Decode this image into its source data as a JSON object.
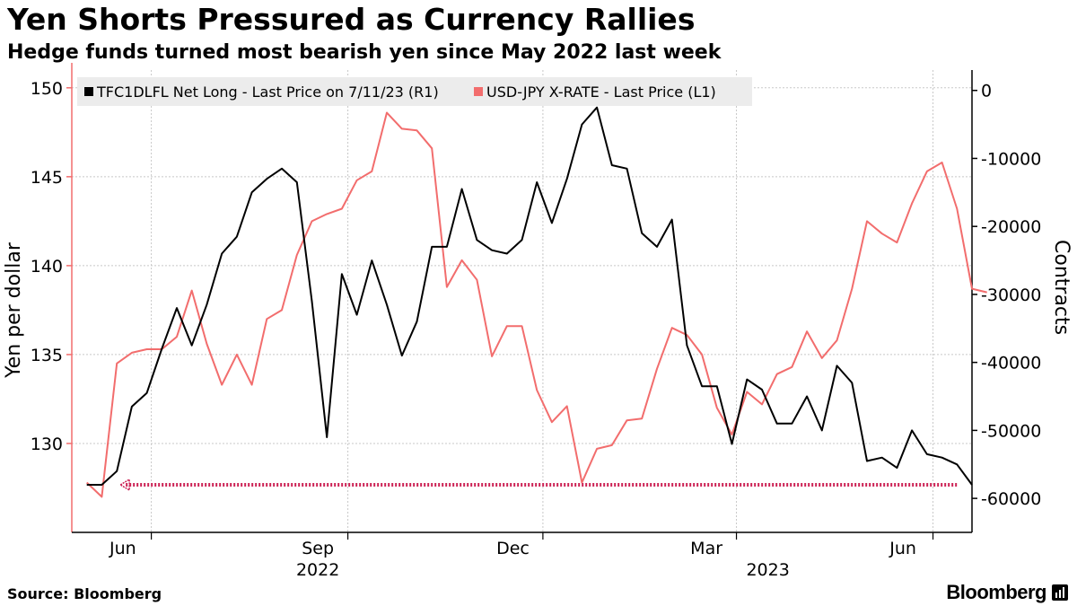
{
  "header": {
    "title": "Yen Shorts Pressured as Currency Rallies",
    "subtitle": "Hedge funds turned most bearish yen since May 2022 last week"
  },
  "footer": {
    "source": "Source: Bloomberg",
    "brand": "Bloomberg"
  },
  "chart_data": {
    "type": "line",
    "title": "Yen Shorts Pressured as Currency Rallies",
    "subtitle": "Hedge funds turned most bearish yen since May 2022 last week",
    "ylabel_left": "Yen per dollar",
    "ylabel_right": "Contracts",
    "ylim_left": [
      125,
      151
    ],
    "ylim_right": [
      -65000,
      3000
    ],
    "left_ticks": [
      130,
      135,
      140,
      145,
      150
    ],
    "right_ticks": [
      0,
      -10000,
      -20000,
      -30000,
      -40000,
      -50000,
      -60000
    ],
    "right_tick_labels": [
      "0",
      "-10000",
      "-20000",
      "-30000",
      "-40000",
      "-50000",
      "-60000"
    ],
    "x_ticks": [
      {
        "label": "Jun",
        "week": 2.4
      },
      {
        "label": "Sep",
        "week": 15.4
      },
      {
        "label": "Dec",
        "week": 28.4
      },
      {
        "label": "Mar",
        "week": 41.3
      },
      {
        "label": "Jun",
        "week": 54.4
      }
    ],
    "x_major_ticks": [
      4.3,
      17.4,
      30.4,
      43.3,
      56.4
    ],
    "year_labels": [
      {
        "label": "2022",
        "week": 15.4
      },
      {
        "label": "2023",
        "week": 45.4
      }
    ],
    "x_range": [
      -1,
      59
    ],
    "grid": true,
    "legend_placement": "top-left",
    "series": [
      {
        "name": "TFC1DLFL Net Long - Last Price on 7/11/23 (R1)",
        "axis": "right",
        "color": "#000000",
        "values": [
          -58000,
          -58000,
          -56000,
          -46500,
          -44500,
          -38000,
          -32000,
          -37500,
          -31500,
          -24000,
          -21500,
          -15000,
          -13000,
          -11500,
          -13500,
          -31000,
          -51000,
          -27000,
          -33000,
          -25000,
          -31500,
          -39000,
          -34000,
          -23000,
          -23000,
          -14500,
          -22000,
          -23500,
          -24000,
          -22000,
          -13500,
          -19500,
          -13000,
          -5000,
          -2500,
          -11000,
          -11500,
          -21000,
          -23000,
          -19000,
          -37500,
          -43500,
          -43500,
          -52000,
          -42500,
          -44000,
          -49000,
          -49000,
          -45000,
          -50000,
          -40500,
          -43000,
          -54500,
          -54000,
          -55500,
          -50000,
          -53500,
          -54000,
          -55000,
          -58000
        ]
      },
      {
        "name": "USD-JPY X-RATE - Last Price (L1)",
        "axis": "left",
        "color": "#f26d6d",
        "values": [
          127.8,
          127.0,
          134.5,
          135.1,
          135.3,
          135.3,
          136.0,
          138.6,
          135.6,
          133.3,
          135.0,
          133.3,
          137.0,
          137.5,
          140.6,
          142.5,
          142.9,
          143.2,
          144.8,
          145.3,
          148.6,
          147.7,
          147.6,
          146.6,
          138.8,
          140.3,
          139.2,
          134.9,
          136.6,
          136.6,
          133.0,
          131.2,
          132.1,
          127.8,
          129.7,
          129.9,
          131.3,
          131.4,
          134.2,
          136.5,
          136.1,
          135.0,
          132.0,
          130.5,
          132.9,
          132.2,
          133.9,
          134.3,
          136.3,
          134.8,
          135.8,
          138.7,
          142.5,
          141.8,
          141.3,
          143.5,
          145.3,
          145.8,
          143.2,
          138.7,
          138.5
        ]
      }
    ],
    "annotations": [
      "arrow marking -58000 level of net long contracts"
    ]
  }
}
